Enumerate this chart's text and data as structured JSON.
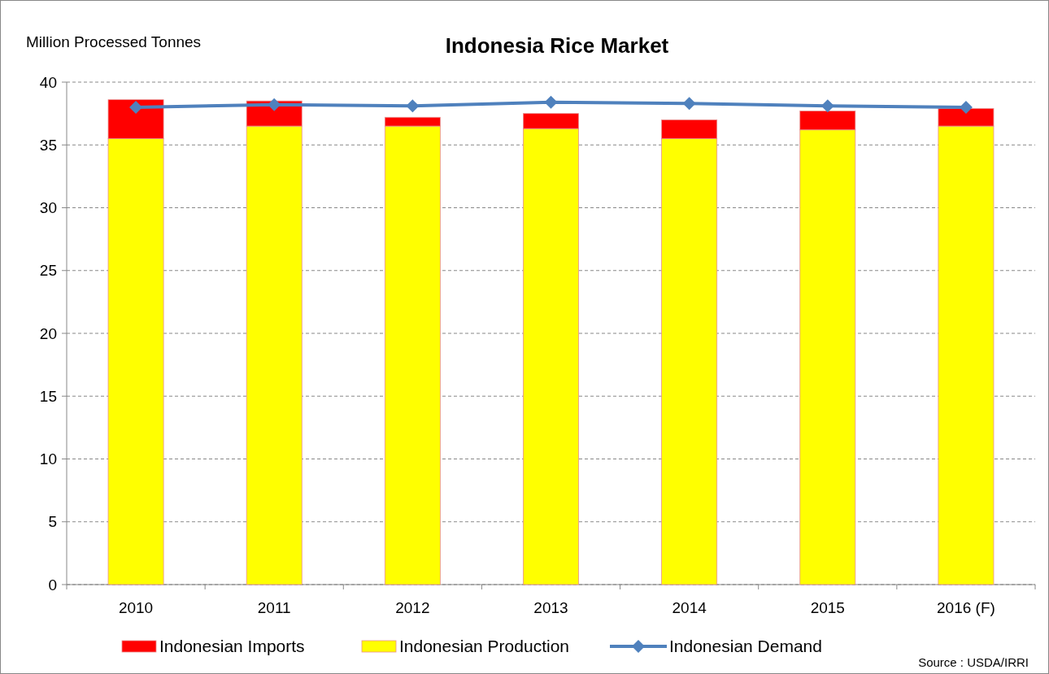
{
  "chart_data": {
    "type": "bar",
    "title": "Indonesia Rice Market",
    "ylabel": "Million  Processed Tonnes",
    "categories": [
      "2010",
      "2011",
      "2012",
      "2013",
      "2014",
      "2015",
      "2016 (F)"
    ],
    "stacked": true,
    "series": [
      {
        "name": "Indonesian Production",
        "color": "#ffff00",
        "values": [
          35.5,
          36.5,
          36.5,
          36.3,
          35.5,
          36.2,
          36.5
        ]
      },
      {
        "name": "Indonesian Imports",
        "color": "#ff0000",
        "values": [
          3.1,
          2.0,
          0.7,
          1.2,
          1.5,
          1.5,
          1.4
        ]
      },
      {
        "name": "Indonesian Demand",
        "type": "line",
        "color": "#4f81bd",
        "values": [
          38.0,
          38.2,
          38.1,
          38.4,
          38.3,
          38.1,
          38.0
        ]
      }
    ],
    "ylim": [
      0,
      40
    ],
    "yticks": [
      0,
      5,
      10,
      15,
      20,
      25,
      30,
      35,
      40
    ],
    "grid": "y",
    "legend": "bottom",
    "marker": "diamond",
    "line_style": "solid",
    "annotations": [
      "Source : USDA/IRRI"
    ]
  }
}
